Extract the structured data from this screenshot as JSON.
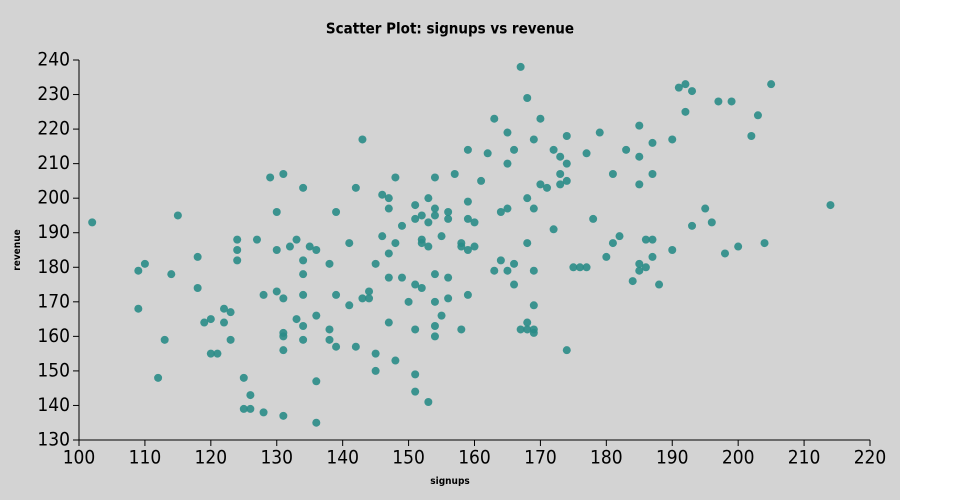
{
  "chart_data": {
    "type": "scatter",
    "title": "Scatter Plot: signups vs revenue",
    "x_label": "signups",
    "y_label": "revenue",
    "color": "#2a8c87",
    "xlim": [
      100,
      220
    ],
    "ylim": [
      130,
      240
    ],
    "xticks": [
      100,
      110,
      120,
      130,
      140,
      150,
      160,
      170,
      180,
      190,
      200,
      210,
      220
    ],
    "yticks": [
      130,
      140,
      150,
      160,
      170,
      180,
      190,
      200,
      210,
      220,
      230,
      240
    ],
    "x": [
      102,
      109,
      110,
      109,
      112,
      113,
      114,
      115,
      118,
      118,
      119,
      120,
      120,
      121,
      122,
      122,
      123,
      123,
      124,
      124,
      124,
      125,
      125,
      126,
      126,
      127,
      128,
      128,
      129,
      130,
      130,
      130,
      131,
      131,
      131,
      131,
      131,
      131,
      132,
      133,
      133,
      134,
      134,
      134,
      134,
      134,
      134,
      135,
      136,
      136,
      136,
      136,
      138,
      138,
      138,
      139,
      139,
      139,
      141,
      141,
      142,
      142,
      143,
      143,
      144,
      144,
      145,
      145,
      145,
      146,
      146,
      147,
      147,
      147,
      147,
      147,
      148,
      148,
      148,
      149,
      149,
      150,
      151,
      151,
      151,
      151,
      151,
      151,
      152,
      152,
      152,
      152,
      153,
      153,
      153,
      153,
      154,
      154,
      154,
      154,
      154,
      154,
      154,
      155,
      155,
      156,
      156,
      156,
      156,
      157,
      158,
      158,
      158,
      159,
      159,
      159,
      159,
      159,
      160,
      160,
      161,
      162,
      163,
      163,
      164,
      164,
      165,
      165,
      165,
      165,
      166,
      166,
      166,
      167,
      167,
      168,
      168,
      168,
      168,
      168,
      169,
      169,
      169,
      169,
      169,
      169,
      170,
      170,
      171,
      172,
      172,
      173,
      173,
      173,
      174,
      174,
      174,
      174,
      175,
      176,
      177,
      177,
      178,
      179,
      180,
      181,
      181,
      182,
      183,
      184,
      185,
      185,
      185,
      185,
      185,
      186,
      186,
      187,
      187,
      187,
      187,
      188,
      190,
      190,
      191,
      192,
      192,
      193,
      193,
      195,
      196,
      197,
      198,
      199,
      200,
      202,
      203,
      204,
      205,
      214
    ],
    "values": [
      193,
      179,
      181,
      168,
      148,
      159,
      178,
      195,
      183,
      174,
      164,
      165,
      155,
      155,
      168,
      164,
      167,
      159,
      188,
      185,
      182,
      148,
      139,
      139,
      143,
      188,
      172,
      138,
      206,
      196,
      185,
      173,
      207,
      171,
      161,
      160,
      156,
      137,
      186,
      188,
      165,
      203,
      182,
      178,
      172,
      163,
      159,
      186,
      185,
      166,
      147,
      135,
      181,
      162,
      159,
      196,
      172,
      157,
      187,
      169,
      203,
      157,
      217,
      171,
      173,
      171,
      181,
      155,
      150,
      201,
      189,
      200,
      197,
      184,
      177,
      164,
      206,
      187,
      153,
      177,
      192,
      170,
      198,
      194,
      175,
      162,
      149,
      144,
      195,
      188,
      187,
      174,
      200,
      193,
      186,
      141,
      206,
      197,
      195,
      178,
      170,
      163,
      160,
      189,
      166,
      196,
      194,
      177,
      171,
      207,
      187,
      186,
      162,
      214,
      199,
      194,
      185,
      172,
      193,
      186,
      205,
      213,
      223,
      179,
      196,
      182,
      219,
      210,
      197,
      179,
      214,
      181,
      175,
      238,
      162,
      229,
      200,
      187,
      164,
      162,
      217,
      197,
      179,
      169,
      162,
      161,
      223,
      204,
      203,
      214,
      191,
      212,
      207,
      204,
      218,
      210,
      205,
      156,
      180,
      180,
      213,
      180,
      194,
      219,
      183,
      207,
      187,
      189,
      214,
      176,
      221,
      212,
      204,
      181,
      179,
      188,
      180,
      216,
      207,
      188,
      183,
      175,
      217,
      185,
      232,
      233,
      225,
      231,
      192,
      197,
      193,
      228,
      184,
      228,
      186,
      218,
      224,
      187,
      233,
      198
    ]
  }
}
